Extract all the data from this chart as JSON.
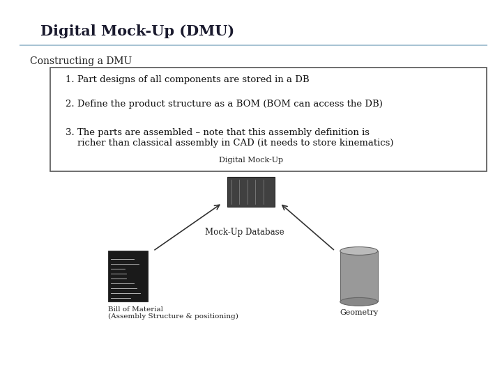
{
  "title": "Digital Mock-Up (DMU)",
  "subtitle": "Constructing a DMU",
  "bg_color": "#ffffff",
  "title_color": "#1a1a2e",
  "line_color": "#a8c4d4",
  "bullet_points": [
    "1. Part designs of all components are stored in a DB",
    "2. Define the product structure as a BOM (BOM can access the DB)",
    "3. The parts are assembled – note that this assembly definition is\n    richer than classical assembly in CAD (it needs to store kinematics)"
  ],
  "box_edge_color": "#555555",
  "diagram_label_top": "Digital Mock-Up",
  "diagram_label_center": "Mock-Up Database",
  "diagram_label_bl": "Bill of Material\n(Assembly Structure & positioning)",
  "diagram_label_br": "Geometry"
}
